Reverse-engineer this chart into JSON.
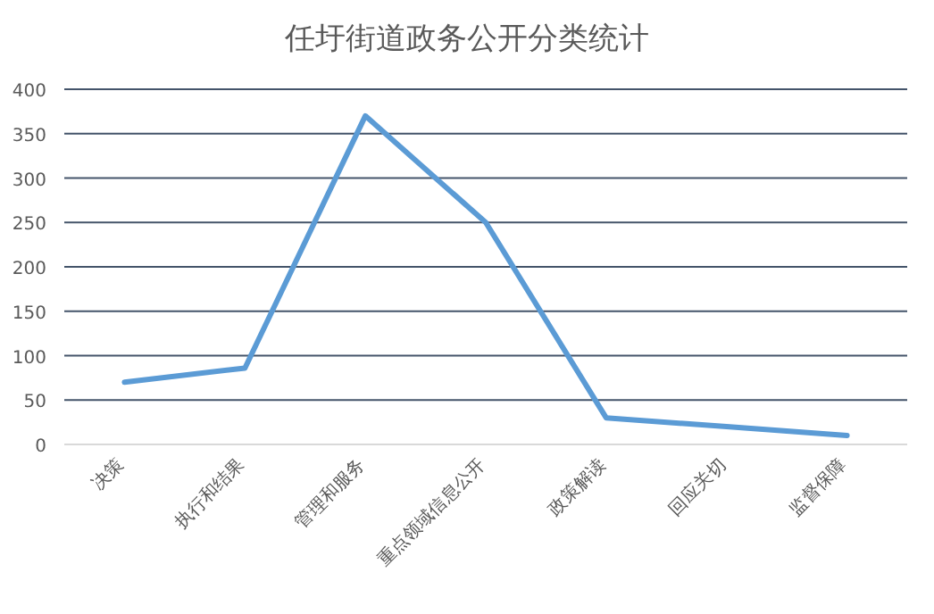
{
  "chart_data": {
    "type": "line",
    "title": "任圩街道政务公开分类统计",
    "categories": [
      "决策",
      "执行和结果",
      "管理和服务",
      "重点领域信息公开",
      "政策解读",
      "回应关切",
      "监督保障"
    ],
    "series": [
      {
        "color": "#5b9bd5",
        "values": [
          70,
          86,
          370,
          250,
          30,
          20,
          10
        ]
      }
    ],
    "ylim": [
      0,
      400
    ],
    "yticks": [
      0,
      50,
      100,
      150,
      200,
      250,
      300,
      350,
      400
    ],
    "grid": "y",
    "marker": "none",
    "line_style": "solid"
  }
}
